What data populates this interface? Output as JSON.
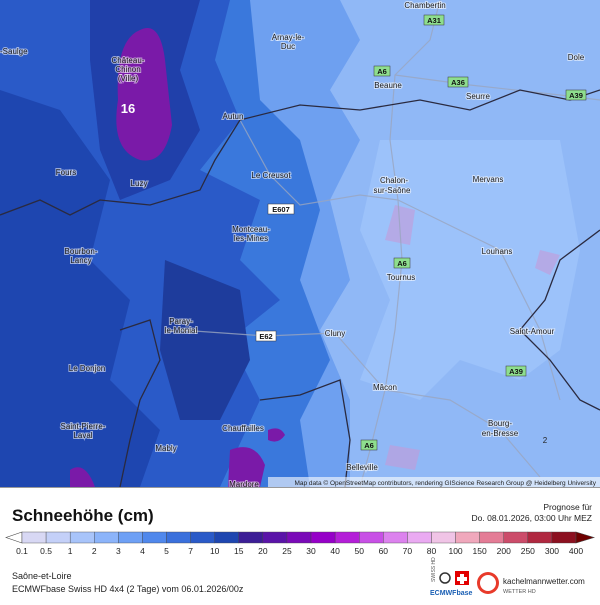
{
  "map": {
    "labels": [
      "Chambertin",
      "A31",
      "-Saulge",
      "Château-",
      "Chinon",
      "(Ville)",
      "Arnay-le-",
      "Duc",
      "A6",
      "A36",
      "Beaune",
      "Dole",
      "Seurre",
      "A39",
      "16",
      "Autun",
      "Fours",
      "Le Creusot",
      "Luzy",
      "Chalon-",
      "sur-Saône",
      "Mervans",
      "E607",
      "Montceau-",
      "les-Mines",
      "Bourbon-",
      "Lancy",
      "Louhans",
      "A6",
      "Tournus",
      "Paray-",
      "le-Monial",
      "E62",
      "Cluny",
      "Saint-Amour",
      "Le Donjon",
      "A39",
      "Mâcon",
      "Saint-Pierre-",
      "Laval",
      "Chauffailles",
      "Bourg-",
      "en-Bresse",
      "A6",
      "Mably",
      "Belleville",
      "2",
      "Mardore"
    ],
    "attribution": "Map data © OpenStreetMap contributors, rendering GIScience Research Group @ Heidelberg University"
  },
  "legend": {
    "title": "Schneehöhe (cm)",
    "forecast_label": "Prognose für",
    "forecast_time": "Do. 08.01.2026, 03:00 Uhr MEZ",
    "scale": [
      "0.1",
      "0.5",
      "1",
      "2",
      "3",
      "4",
      "5",
      "7",
      "10",
      "15",
      "20",
      "25",
      "30",
      "40",
      "50",
      "60",
      "70",
      "80",
      "100",
      "150",
      "200",
      "250",
      "300",
      "400"
    ],
    "colors": [
      "#d8d8f4",
      "#c4d0f8",
      "#a8c4fa",
      "#8cb4fa",
      "#6ea0f5",
      "#5088ec",
      "#3a70dc",
      "#2a5ac8",
      "#1e46b0",
      "#3c1e96",
      "#5a14a8",
      "#7a0ab8",
      "#9600c8",
      "#b41ed8",
      "#c850e6",
      "#dc82ee",
      "#eaaaf2",
      "#f0c4e6",
      "#f0a8bc",
      "#e47c96",
      "#cc4c6a",
      "#b02840",
      "#8c1020"
    ],
    "under_color": "#ffffff",
    "over_color": "#6e0000"
  },
  "footer": {
    "region": "Saône-et-Loire",
    "model": "ECMWFbase Swiss HD 4x4 (2 Tage) vom 06.01.2026/00z",
    "logo_top": "SWISS HD",
    "logo_text": "ECMWFbase",
    "site": "kachelmannwetter.com",
    "site_sub": "WETTER HD"
  }
}
